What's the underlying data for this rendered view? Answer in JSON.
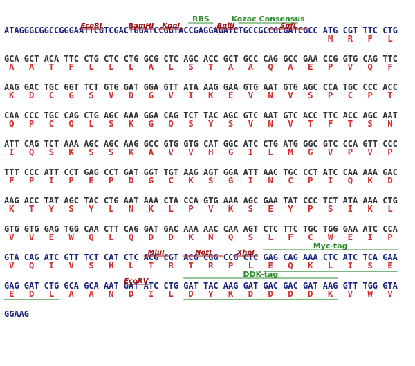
{
  "colors": {
    "dna": "#1a237e",
    "dna_plain": "#333333",
    "aa": "#d32f2f",
    "enzyme": "#a01010",
    "tag": "#2e8b2e"
  },
  "blocks": [
    {
      "dna": "ATAGGGCGGCCGGGAATTCGTCGACTGGATCCGGTACCGAGGAGATCTGCCGCCGCGATCGCC ATG CGT TTC CTG",
      "aa": [
        "M",
        "R",
        "F",
        "L"
      ],
      "aa_cols": [
        65,
        69,
        73,
        77
      ],
      "annotations": [
        {
          "label": "EcoRI",
          "col_start": 15,
          "col_end": 20,
          "kind": "enzyme",
          "row": 1
        },
        {
          "label": "BamHI",
          "col_start": 25,
          "col_end": 30,
          "kind": "enzyme",
          "row": 1
        },
        {
          "label": "KpnI",
          "col_start": 31,
          "col_end": 36,
          "kind": "enzyme",
          "row": 1
        },
        {
          "label": "RBS",
          "col_start": 37,
          "col_end": 42,
          "kind": "tag",
          "row": 0
        },
        {
          "label": "BglII",
          "col_start": 42,
          "col_end": 47,
          "kind": "enzyme",
          "row": 1
        },
        {
          "label": "Kozac Consensus",
          "col_start": 47,
          "col_end": 59,
          "kind": "tag",
          "row": 0
        },
        {
          "label": "SgfI",
          "col_start": 53,
          "col_end": 61,
          "kind": "enzyme",
          "row": 1
        }
      ]
    },
    {
      "dna": "GCA GCT ACA TTC CTG CTC CTG GCG CTC AGC ACC GCT GCC CAG GCC GAA CCG GTG CAG TTC",
      "aa": [
        "A",
        "A",
        "T",
        "F",
        "L",
        "L",
        "L",
        "A",
        "L",
        "S",
        "T",
        "A",
        "A",
        "Q",
        "A",
        "E",
        "P",
        "V",
        "Q",
        "F"
      ]
    },
    {
      "dna": "AAG GAC TGC GGT TCT GTG GAT GGA GTT ATA AAG GAA GTG AAT GTG AGC CCA TGC CCC ACC",
      "aa": [
        "K",
        "D",
        "C",
        "G",
        "S",
        "V",
        "D",
        "G",
        "V",
        "I",
        "K",
        "E",
        "V",
        "N",
        "V",
        "S",
        "P",
        "C",
        "P",
        "T"
      ]
    },
    {
      "dna": "CAA CCC TGC CAG CTG AGC AAA GGA CAG TCT TAC AGC GTC AAT GTC ACC TTC ACC AGC AAT",
      "aa": [
        "Q",
        "P",
        "C",
        "Q",
        "L",
        "S",
        "K",
        "G",
        "Q",
        "S",
        "Y",
        "S",
        "V",
        "N",
        "V",
        "T",
        "F",
        "T",
        "S",
        "N"
      ]
    },
    {
      "dna": "ATT CAG TCT AAA AGC AGC AAG GCC GTG GTG CAT GGC ATC CTG ATG GGC GTC CCA GTT CCC",
      "aa": [
        "I",
        "Q",
        "S",
        "K",
        "S",
        "S",
        "K",
        "A",
        "V",
        "V",
        "H",
        "G",
        "I",
        "L",
        "M",
        "G",
        "V",
        "P",
        "V",
        "P"
      ]
    },
    {
      "dna": "TTT CCC ATT CCT GAG CCT GAT GGT TGT AAG AGT GGA ATT AAC TGC CCT ATC CAA AAA GAC",
      "aa": [
        "F",
        "P",
        "I",
        "P",
        "E",
        "P",
        "D",
        "G",
        "C",
        "K",
        "S",
        "G",
        "I",
        "N",
        "C",
        "P",
        "I",
        "Q",
        "K",
        "D"
      ]
    },
    {
      "dna": "AAG ACC TAT AGC TAC CTG AAT AAA CTA CCA GTG AAA AGC GAA TAT CCC TCT ATA AAA CTG",
      "aa": [
        "K",
        "T",
        "Y",
        "S",
        "Y",
        "L",
        "N",
        "K",
        "L",
        "P",
        "V",
        "K",
        "S",
        "E",
        "Y",
        "P",
        "S",
        "I",
        "K",
        "L"
      ]
    },
    {
      "dna": "GTG GTG GAG TGG CAA CTT CAG GAT GAC AAA AAC CAA AGT CTC TTC TGC TGG GAA ATC CCA",
      "aa": [
        "V",
        "V",
        "E",
        "W",
        "Q",
        "L",
        "Q",
        "D",
        "D",
        "K",
        "N",
        "Q",
        "S",
        "L",
        "F",
        "C",
        "W",
        "E",
        "I",
        "P"
      ]
    },
    {
      "dna": "GTA CAG ATC GTT TCT CAT CTC ACG CGT ACG CGG CCG CTC GAG CAG AAA CTC ATC TCA GAA",
      "aa": [
        "V",
        "Q",
        "I",
        "V",
        "S",
        "H",
        "L",
        "T",
        "R",
        "T",
        "R",
        "P",
        "L",
        "E",
        "Q",
        "K",
        "L",
        "I",
        "S",
        "E"
      ],
      "annotations": [
        {
          "label": "MluI",
          "col_start": 28,
          "col_end": 33,
          "kind": "enzyme",
          "row": 1
        },
        {
          "label": "NotI",
          "col_start": 36,
          "col_end": 44,
          "kind": "enzyme",
          "row": 1
        },
        {
          "label": "XhoI",
          "col_start": 46,
          "col_end": 51,
          "kind": "enzyme",
          "row": 1
        },
        {
          "label": "Myc-tag",
          "col_start": 52,
          "col_end": 79,
          "kind": "tag",
          "row": 0,
          "underline_aa": true
        }
      ]
    },
    {
      "dna": "GAG GAT CTG GCA GCA AAT GAT ATC CTG GAT TAC AAG GAT GAC GAC GAT AAG GTT TGG GTA",
      "aa": [
        "E",
        "D",
        "L",
        "A",
        "A",
        "N",
        "D",
        "I",
        "L",
        "D",
        "Y",
        "K",
        "D",
        "D",
        "D",
        "D",
        "K",
        "V",
        "W",
        "V"
      ],
      "annotations": [
        {
          "label": "",
          "col_start": 0,
          "col_end": 11,
          "kind": "tag",
          "row": 0,
          "underline_aa": true,
          "continuation": true
        },
        {
          "label": "EcoRV",
          "col_start": 24,
          "col_end": 29,
          "kind": "enzyme",
          "row": 1
        },
        {
          "label": "DDK-tag",
          "col_start": 36,
          "col_end": 67,
          "kind": "tag",
          "row": 0,
          "underline_aa": true
        }
      ]
    },
    {
      "dna": "GGAAG",
      "aa": []
    }
  ]
}
